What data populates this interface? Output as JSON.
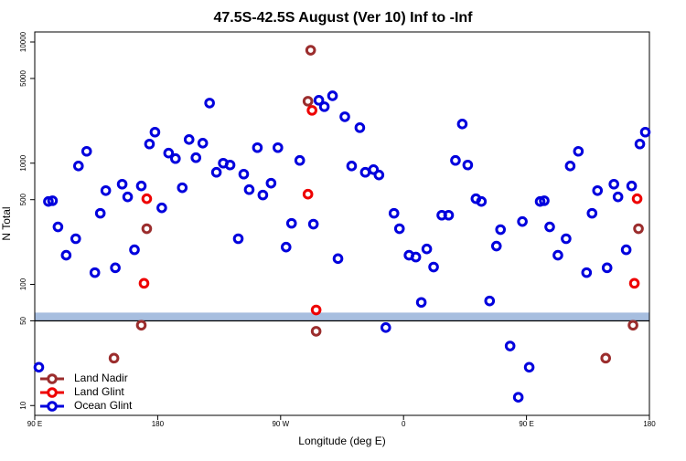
{
  "chart_data": {
    "type": "scatter",
    "title": "47.5S-42.5S August (Ver 10)   Inf to -Inf",
    "x_label": "Longitude (deg E)",
    "y_label": "N Total",
    "log_y": true,
    "legend": "bottom-left",
    "xlim": [
      90,
      540
    ],
    "xticks": [
      {
        "value": 90,
        "label": "90 E"
      },
      180,
      {
        "value": 270,
        "label": "90 W"
      },
      {
        "value": 360,
        "label": "0"
      },
      {
        "value": 450,
        "label": "90 E"
      },
      {
        "value": 540,
        "label": "180"
      }
    ],
    "ylim": [
      8.3,
      12100
    ],
    "yticks": [
      10,
      50,
      100,
      500,
      1000,
      5000,
      10000
    ],
    "hline": 50,
    "band": [
      50,
      58.5
    ],
    "band_color": "#a7bedf",
    "series": [
      {
        "name": "Land Nadir",
        "color": "#9b2d2d",
        "x": [
          172,
          168,
          148,
          292,
          290,
          296,
          532,
          528,
          508
        ],
        "values": [
          288,
          46,
          24.6,
          8550,
          3245,
          41,
          288,
          46,
          24.6
        ]
      },
      {
        "name": "Land Glint",
        "color": "#ee0000",
        "x": [
          172,
          170,
          290,
          293,
          296,
          531,
          529
        ],
        "values": [
          509,
          102,
          555,
          2729,
          61.5,
          509,
          102
        ]
      },
      {
        "name": "Ocean Glint",
        "color": "#0000dd",
        "x": [
          93,
          100,
          103,
          107,
          113,
          120,
          122,
          128,
          134,
          138,
          142,
          149,
          154,
          158,
          163,
          168,
          174,
          178,
          183,
          188,
          193,
          198,
          203,
          208,
          213,
          218,
          223,
          228,
          233,
          239,
          243,
          247,
          253,
          257,
          263,
          268,
          274,
          278,
          284,
          294,
          298,
          302,
          308,
          312,
          317,
          322,
          328,
          332,
          338,
          342,
          347,
          353,
          357,
          364,
          369,
          373,
          377,
          382,
          388,
          393,
          398,
          403,
          407,
          413,
          417,
          423,
          428,
          431,
          438,
          444,
          447,
          452,
          460,
          463,
          467,
          473,
          479,
          482,
          488,
          494,
          498,
          502,
          509,
          514,
          517,
          523,
          527,
          533,
          537
        ],
        "values": [
          20.7,
          483,
          490,
          298,
          174,
          238,
          948,
          1253,
          125,
          386,
          594,
          137,
          671,
          527,
          193,
          649,
          1439,
          1803,
          428,
          1211,
          1091,
          627,
          1568,
          1110,
          1463,
          3133,
          841,
          1000,
          966,
          238,
          812,
          605,
          1343,
          546,
          684,
          1343,
          203,
          319,
          1054,
          314,
          3304,
          2925,
          3597,
          163,
          2415,
          948,
          1963,
          841,
          885,
          799,
          44,
          386,
          288,
          174,
          168,
          71,
          196,
          139,
          372,
          372,
          1054,
          2105,
          966,
          509,
          483,
          73,
          207,
          283,
          31,
          11.7,
          330,
          20.7,
          483,
          490,
          298,
          174,
          238,
          948,
          1253,
          125,
          386,
          594,
          137,
          671,
          527,
          193,
          649,
          1439,
          1803
        ]
      }
    ]
  }
}
